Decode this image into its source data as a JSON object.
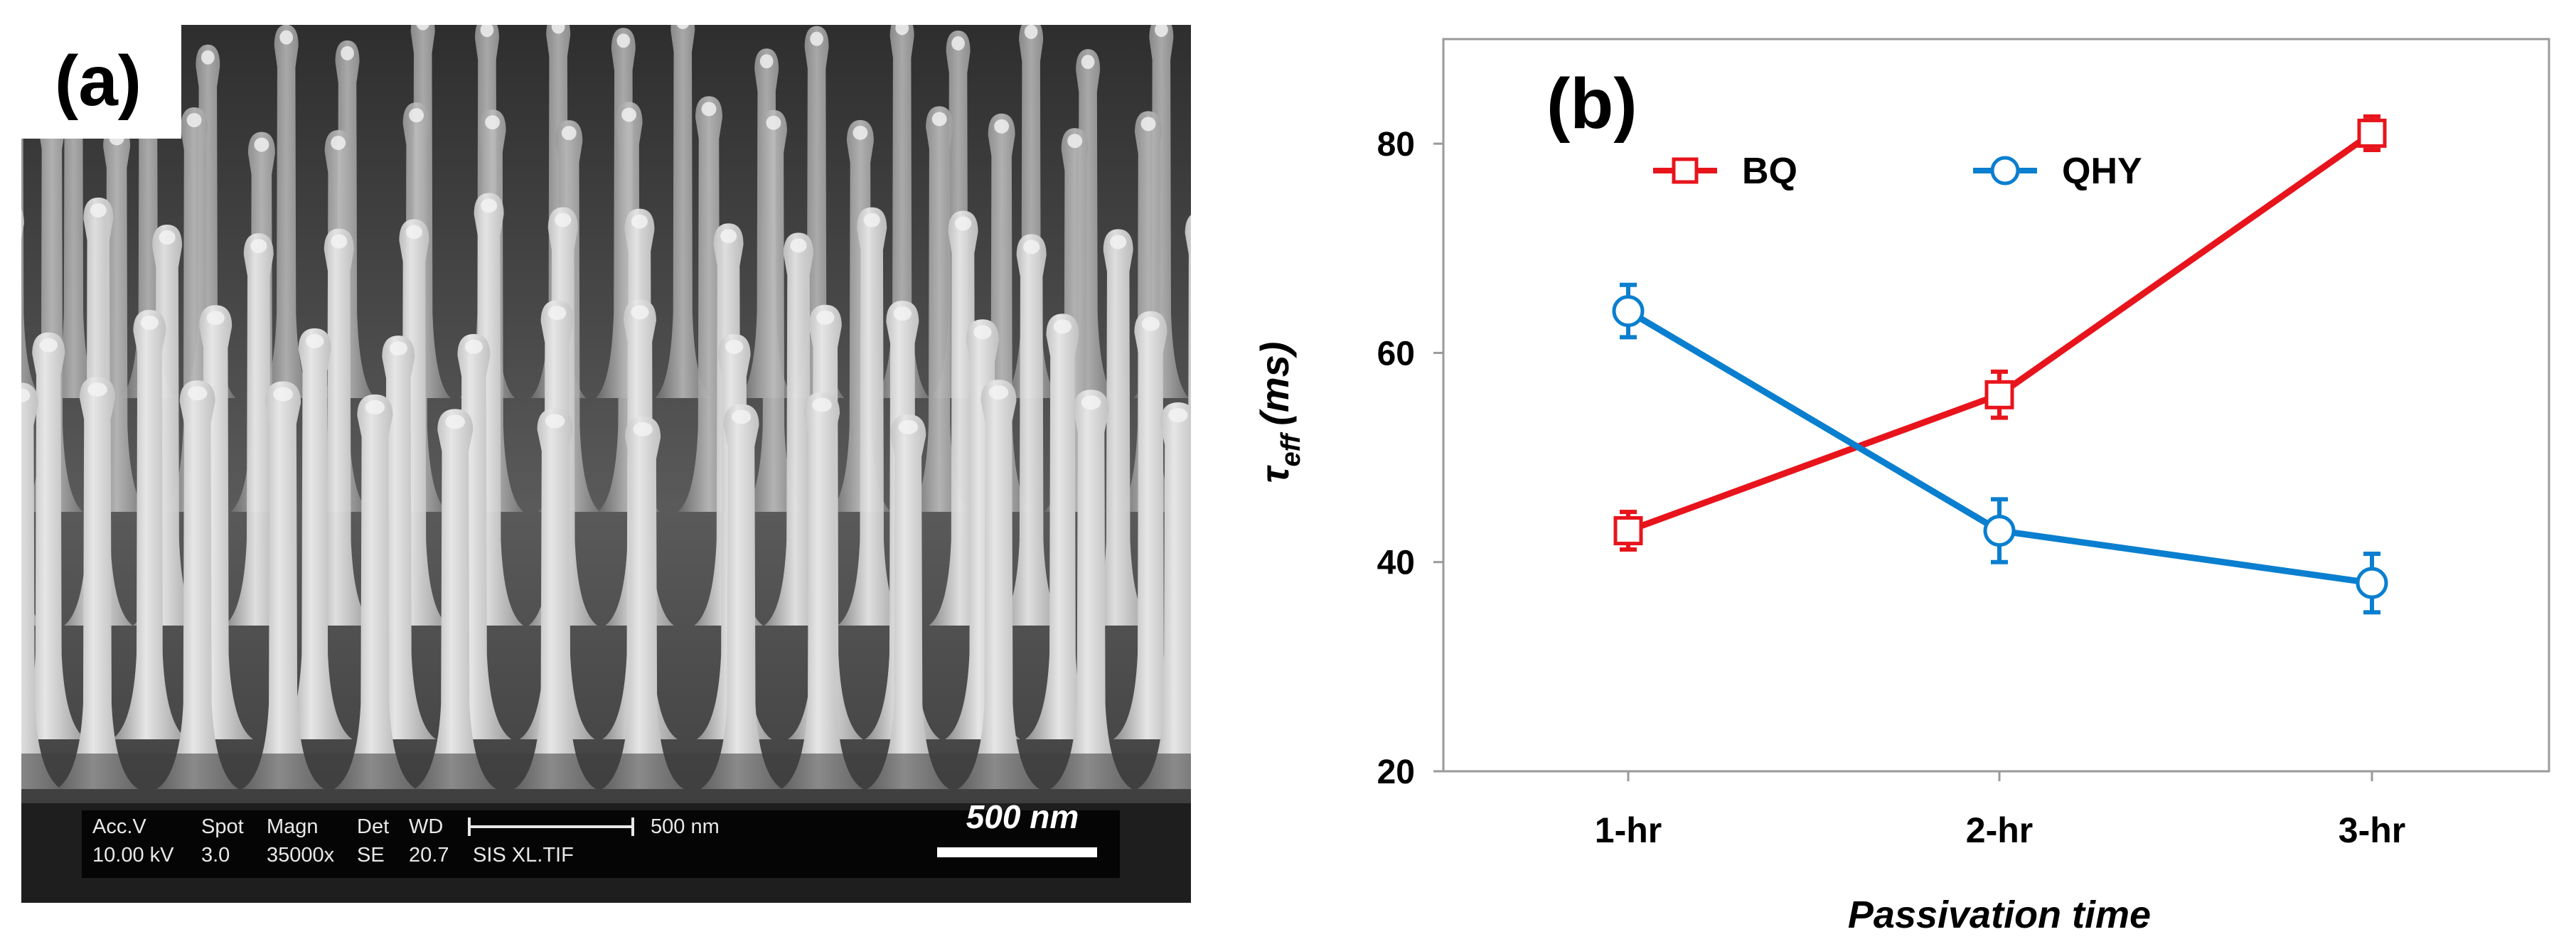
{
  "panel_a": {
    "label": "(a)",
    "sem_info": {
      "header_1": "Acc.V",
      "header_2": "Spot",
      "header_3": "Magn",
      "header_4": "Det",
      "header_5": "WD",
      "value_1": "10.00 kV",
      "value_2": "3.0",
      "value_3": "35000x",
      "value_4": "SE",
      "value_5": "20.7",
      "value_6": "SIS XL.TIF",
      "bar_label": "500 nm"
    },
    "scale_bar_label": "500 nm"
  },
  "chart_data": {
    "type": "line",
    "panel_label": "(b)",
    "categories": [
      "1-hr",
      "2-hr",
      "3-hr"
    ],
    "xlabel": "Passivation time",
    "ylabel_main": "τ",
    "ylabel_sub": "eff",
    "ylabel_unit": "(ms)",
    "ylim": [
      20,
      90
    ],
    "yticks": [
      20,
      40,
      60,
      80
    ],
    "legend_position": "top",
    "series": [
      {
        "name": "BQ",
        "color": "#e8141c",
        "marker": "square",
        "values": [
          43,
          56,
          81
        ],
        "errors": [
          1.8,
          2.2,
          1.6
        ]
      },
      {
        "name": "QHY",
        "color": "#0a7fcf",
        "marker": "circle",
        "values": [
          64,
          43,
          38
        ],
        "errors": [
          2.5,
          3.0,
          2.8
        ]
      }
    ]
  }
}
